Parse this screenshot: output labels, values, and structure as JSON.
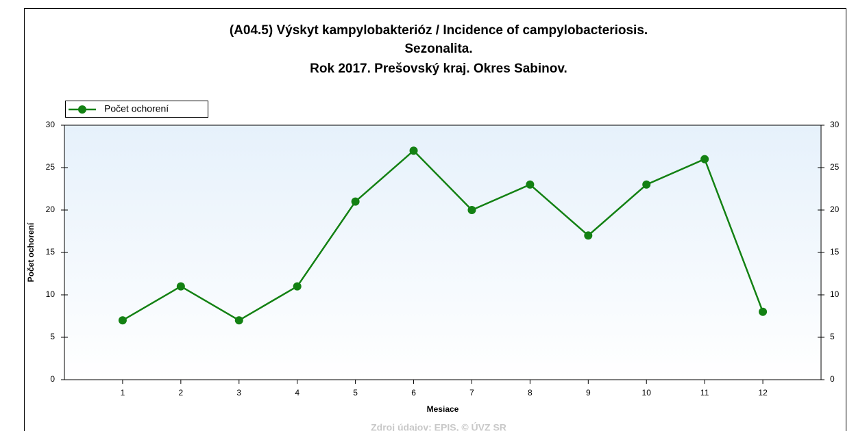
{
  "chart_data": {
    "type": "line",
    "title": [
      "(A04.5) Výskyt kampylobakterióz / Incidence of campylobacteriosis.",
      "Sezonalita.",
      "Rok 2017. Prešovský kraj. Okres Sabinov."
    ],
    "x": [
      1,
      2,
      3,
      4,
      5,
      6,
      7,
      8,
      9,
      10,
      11,
      12
    ],
    "series": [
      {
        "name": "Počet ochorení",
        "color": "#138113",
        "values": [
          7,
          11,
          7,
          11,
          21,
          27,
          20,
          23,
          17,
          23,
          26,
          8
        ]
      }
    ],
    "xlim": [
      0,
      13
    ],
    "xticks": [
      1,
      2,
      3,
      4,
      5,
      6,
      7,
      8,
      9,
      10,
      11,
      12
    ],
    "ylim": [
      0,
      30
    ],
    "yticks": [
      0,
      5,
      10,
      15,
      20,
      25,
      30
    ],
    "y2lim": [
      0,
      30
    ],
    "y2ticks": [
      0,
      5,
      10,
      15,
      20,
      25,
      30
    ],
    "xlabel": "Mesiace",
    "ylabel": "Počet ochorení",
    "legend": "top-left",
    "source": "Zdroj údajov: EPIS, © ÚVZ SR"
  }
}
